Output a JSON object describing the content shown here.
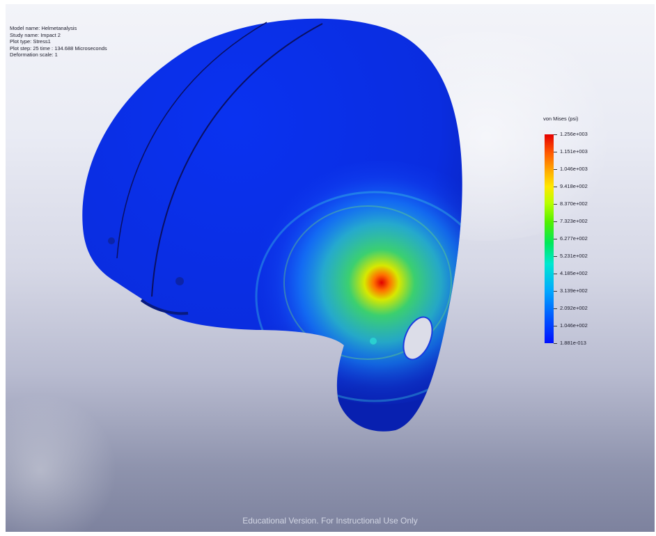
{
  "study_info": {
    "model_name": "Model name: Helmetanalysis",
    "study_name": "Study name: Impact 2",
    "plot_type": "Plot type: Stress1",
    "plot_step": "Plot step: 25  time : 134.688 Microseconds",
    "deformation_scale": "Deformation scale: 1"
  },
  "legend": {
    "title": "von Mises (psi)",
    "labels": [
      "1.256e+003",
      "1.151e+003",
      "1.046e+003",
      "9.418e+002",
      "8.370e+002",
      "7.323e+002",
      "6.277e+002",
      "5.231e+002",
      "4.185e+002",
      "3.139e+002",
      "2.092e+002",
      "1.046e+002",
      "1.881e-013"
    ],
    "max_color": "#e50000",
    "min_color": "#0010ff"
  },
  "watermark": "Educational Version. For Instructional Use Only",
  "colors": {
    "helmet_base": "#0a2ee6",
    "background_top": "#f3f4f9",
    "background_bottom": "#7d829e"
  }
}
